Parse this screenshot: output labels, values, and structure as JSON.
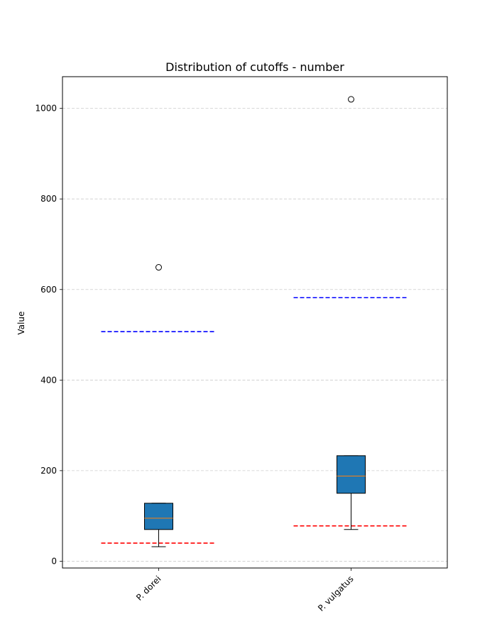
{
  "chart_data": {
    "type": "box",
    "title": "Distribution of cutoffs - number",
    "xlabel": "",
    "ylabel": "Value",
    "ylim": [
      -15,
      1070
    ],
    "yticks": [
      0,
      200,
      400,
      600,
      800,
      1000
    ],
    "grid": "y-dashed",
    "categories": [
      "P. dorei",
      "P. vulgatus"
    ],
    "boxes": [
      {
        "category": "P. dorei",
        "whisker_low": 32,
        "q1": 70,
        "median": 95,
        "q3": 128,
        "whisker_high": 128,
        "outliers": [
          649
        ]
      },
      {
        "category": "P. vulgatus",
        "whisker_low": 70,
        "q1": 150,
        "median": 188,
        "q3": 233,
        "whisker_high": 233,
        "outliers": [
          1020
        ]
      }
    ],
    "reference_lines": [
      {
        "category": "P. dorei",
        "value": 507,
        "color": "#0000ff"
      },
      {
        "category": "P. dorei",
        "value": 40,
        "color": "#ff0000"
      },
      {
        "category": "P. vulgatus",
        "value": 582,
        "color": "#0000ff"
      },
      {
        "category": "P. vulgatus",
        "value": 78,
        "color": "#ff0000"
      }
    ],
    "colors": {
      "box_fill": "#1f77b4",
      "median": "#ff7f0e",
      "grid": "#cccccc"
    }
  }
}
